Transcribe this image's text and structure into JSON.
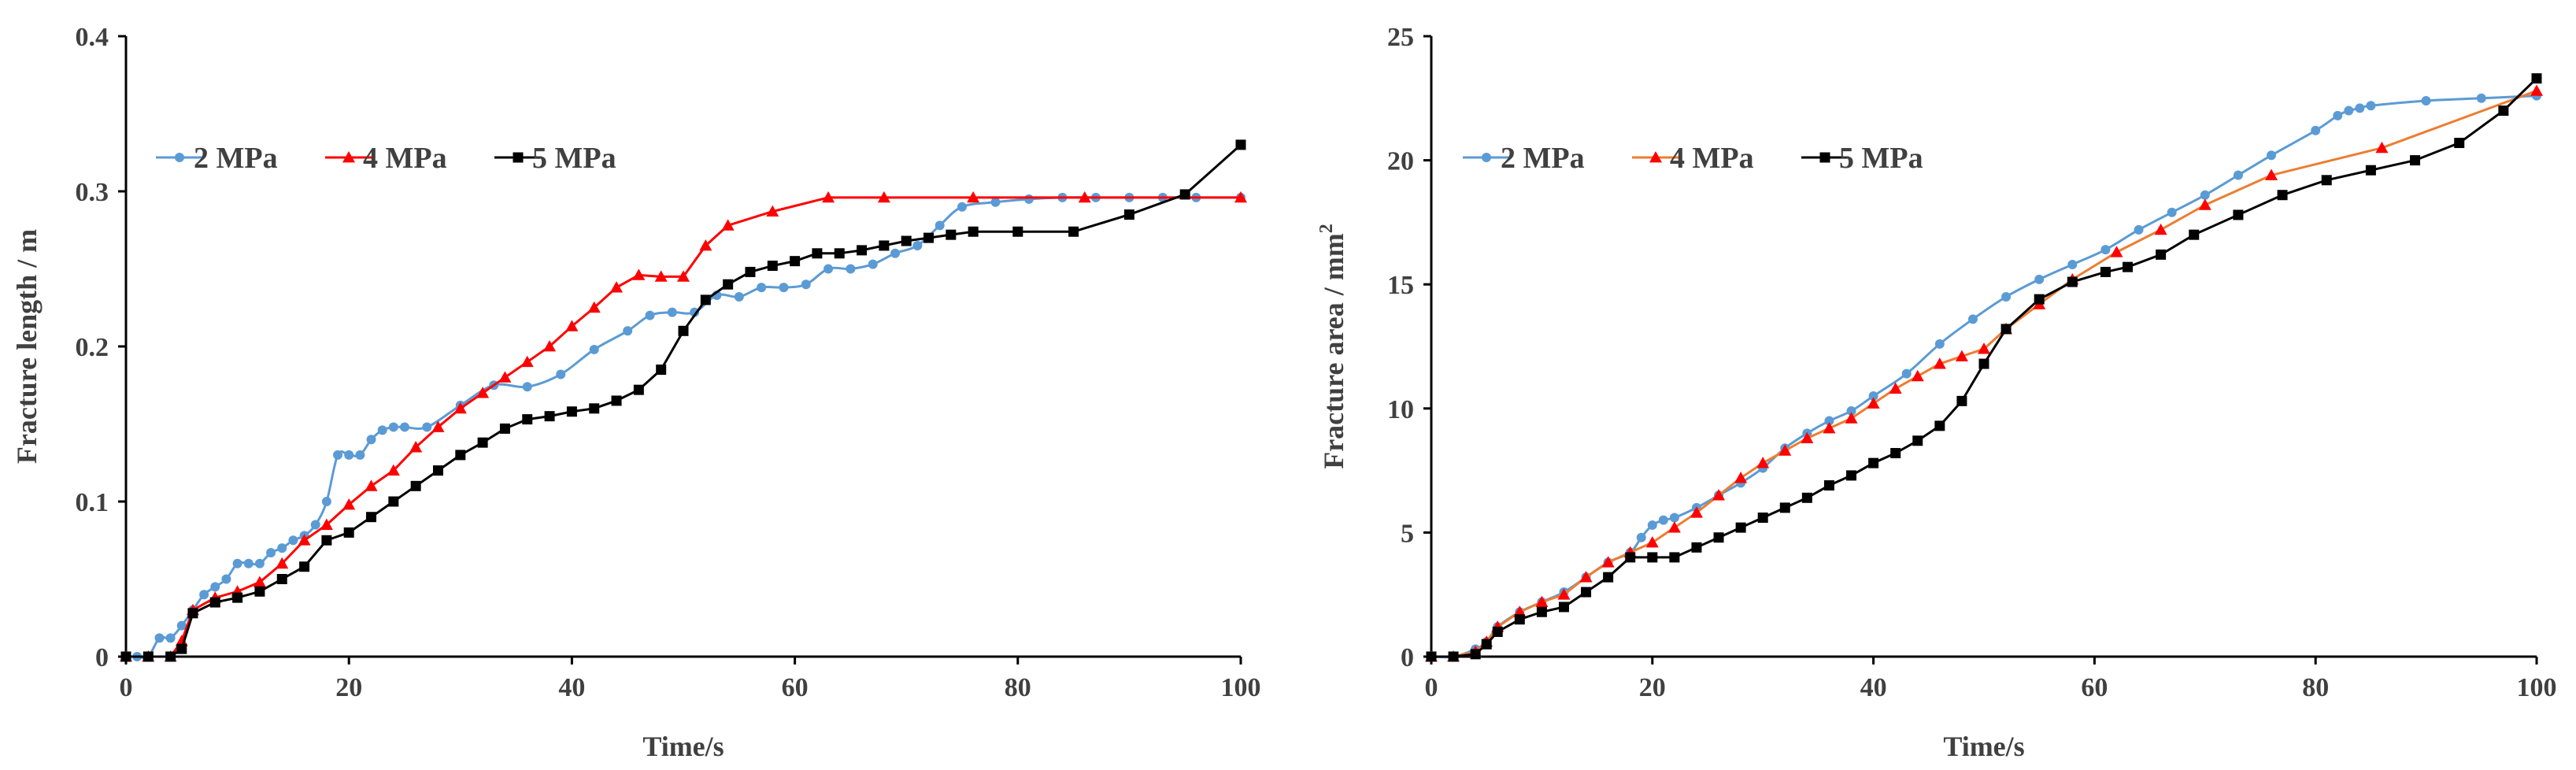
{
  "chart_data": [
    {
      "type": "line",
      "xlabel": "Time/s",
      "ylabel": "Fracture length / m",
      "xlim": [
        0,
        100
      ],
      "ylim": [
        0,
        0.4
      ],
      "xticks": [
        0,
        20,
        40,
        60,
        80,
        100
      ],
      "yticks": [
        0,
        0.1,
        0.2,
        0.3,
        0.4
      ],
      "xtick_labels": [
        "0",
        "20",
        "40",
        "60",
        "80",
        "100"
      ],
      "ytick_labels": [
        "0",
        "0.1",
        "0.2",
        "0.3",
        "0.4"
      ],
      "legend_position": "upper-left",
      "series": [
        {
          "name": "2 MPa",
          "color": "#5b9bd5",
          "marker": "circle",
          "smooth": true,
          "x": [
            0,
            1,
            2,
            3,
            4,
            5,
            6,
            7,
            8,
            9,
            10,
            11,
            12,
            13,
            14,
            15,
            16,
            17,
            18,
            19,
            20,
            21,
            22,
            23,
            24,
            25,
            27,
            30,
            33,
            36,
            39,
            42,
            45,
            47,
            49,
            51,
            53,
            55,
            57,
            59,
            61,
            63,
            65,
            67,
            69,
            71,
            73,
            75,
            78,
            81,
            84,
            87,
            90,
            93,
            96,
            100
          ],
          "y": [
            0,
            0,
            0,
            0.012,
            0.012,
            0.02,
            0.03,
            0.04,
            0.045,
            0.05,
            0.06,
            0.06,
            0.06,
            0.067,
            0.07,
            0.075,
            0.078,
            0.085,
            0.1,
            0.13,
            0.13,
            0.13,
            0.14,
            0.146,
            0.148,
            0.148,
            0.148,
            0.162,
            0.175,
            0.174,
            0.182,
            0.198,
            0.21,
            0.22,
            0.222,
            0.222,
            0.233,
            0.232,
            0.238,
            0.238,
            0.24,
            0.25,
            0.25,
            0.253,
            0.26,
            0.265,
            0.278,
            0.29,
            0.293,
            0.295,
            0.296,
            0.296,
            0.296,
            0.296,
            0.296,
            0.296
          ]
        },
        {
          "name": "4 MPa",
          "color": "#ff0000",
          "marker": "triangle",
          "smooth": false,
          "x": [
            0,
            2,
            4,
            5,
            6,
            8,
            10,
            12,
            14,
            16,
            18,
            20,
            22,
            24,
            26,
            28,
            30,
            32,
            34,
            36,
            38,
            40,
            42,
            44,
            46,
            48,
            50,
            52,
            54,
            58,
            63,
            68,
            76,
            86,
            100
          ],
          "y": [
            0,
            0,
            0,
            0.01,
            0.03,
            0.038,
            0.042,
            0.048,
            0.06,
            0.075,
            0.085,
            0.098,
            0.11,
            0.12,
            0.135,
            0.148,
            0.16,
            0.17,
            0.18,
            0.19,
            0.2,
            0.213,
            0.225,
            0.238,
            0.246,
            0.245,
            0.245,
            0.265,
            0.278,
            0.287,
            0.296,
            0.296,
            0.296,
            0.296,
            0.296
          ]
        },
        {
          "name": "5 MPa",
          "color": "#000000",
          "marker": "square",
          "smooth": false,
          "x": [
            0,
            2,
            4,
            5,
            6,
            8,
            10,
            12,
            14,
            16,
            18,
            20,
            22,
            24,
            26,
            28,
            30,
            32,
            34,
            36,
            38,
            40,
            42,
            44,
            46,
            48,
            50,
            52,
            54,
            56,
            58,
            60,
            62,
            64,
            66,
            68,
            70,
            72,
            74,
            76,
            80,
            85,
            90,
            95,
            100
          ],
          "y": [
            0,
            0,
            0,
            0.005,
            0.028,
            0.035,
            0.038,
            0.042,
            0.05,
            0.058,
            0.075,
            0.08,
            0.09,
            0.1,
            0.11,
            0.12,
            0.13,
            0.138,
            0.147,
            0.153,
            0.155,
            0.158,
            0.16,
            0.165,
            0.172,
            0.185,
            0.21,
            0.23,
            0.24,
            0.248,
            0.252,
            0.255,
            0.26,
            0.26,
            0.262,
            0.265,
            0.268,
            0.27,
            0.272,
            0.274,
            0.274,
            0.274,
            0.285,
            0.298,
            0.33
          ]
        }
      ]
    },
    {
      "type": "line",
      "xlabel": "Time/s",
      "ylabel": "Fracture area / mm",
      "ylabel_superscript": "2",
      "xlim": [
        0,
        100
      ],
      "ylim": [
        0,
        25
      ],
      "xticks": [
        0,
        20,
        40,
        60,
        80,
        100
      ],
      "yticks": [
        0,
        5,
        10,
        15,
        20,
        25
      ],
      "xtick_labels": [
        "0",
        "20",
        "40",
        "60",
        "80",
        "100"
      ],
      "ytick_labels": [
        "0",
        "5",
        "10",
        "15",
        "20",
        "25"
      ],
      "legend_position": "upper-left",
      "series": [
        {
          "name": "2 MPa",
          "color": "#5b9bd5",
          "marker": "circle",
          "smooth": true,
          "x": [
            0,
            2,
            4,
            5,
            6,
            8,
            10,
            12,
            14,
            16,
            18,
            19,
            20,
            21,
            22,
            24,
            26,
            28,
            30,
            32,
            34,
            36,
            38,
            40,
            43,
            46,
            49,
            52,
            55,
            58,
            61,
            64,
            67,
            70,
            73,
            76,
            80,
            82,
            83,
            84,
            85,
            90,
            95,
            100
          ],
          "y": [
            0,
            0,
            0.3,
            0.6,
            1.2,
            1.8,
            2.2,
            2.6,
            3.2,
            3.8,
            4.2,
            4.8,
            5.3,
            5.5,
            5.6,
            6.0,
            6.5,
            7.0,
            7.6,
            8.4,
            9.0,
            9.5,
            9.9,
            10.5,
            11.4,
            12.6,
            13.6,
            14.5,
            15.2,
            15.8,
            16.4,
            17.2,
            17.9,
            18.6,
            19.4,
            20.2,
            21.2,
            21.8,
            22.0,
            22.1,
            22.2,
            22.4,
            22.5,
            22.6
          ]
        },
        {
          "name": "4 MPa",
          "color": "#ff0000",
          "line_color": "#ed7d31",
          "marker": "triangle",
          "smooth": false,
          "x": [
            0,
            2,
            4,
            5,
            6,
            8,
            10,
            12,
            14,
            16,
            18,
            20,
            22,
            24,
            26,
            28,
            30,
            32,
            34,
            36,
            38,
            40,
            42,
            44,
            46,
            48,
            50,
            52,
            55,
            58,
            62,
            66,
            70,
            76,
            86,
            100
          ],
          "y": [
            0,
            0,
            0.2,
            0.6,
            1.2,
            1.8,
            2.2,
            2.5,
            3.2,
            3.8,
            4.2,
            4.6,
            5.2,
            5.8,
            6.5,
            7.2,
            7.8,
            8.3,
            8.8,
            9.2,
            9.6,
            10.2,
            10.8,
            11.3,
            11.8,
            12.1,
            12.4,
            13.2,
            14.2,
            15.2,
            16.3,
            17.2,
            18.2,
            19.4,
            20.5,
            22.8
          ]
        },
        {
          "name": "5 MPa",
          "color": "#000000",
          "marker": "square",
          "smooth": false,
          "x": [
            0,
            2,
            4,
            5,
            6,
            8,
            10,
            12,
            14,
            16,
            18,
            20,
            22,
            24,
            26,
            28,
            30,
            32,
            34,
            36,
            38,
            40,
            42,
            44,
            46,
            48,
            50,
            52,
            55,
            58,
            61,
            63,
            66,
            69,
            73,
            77,
            81,
            85,
            89,
            93,
            97,
            100
          ],
          "y": [
            0,
            0,
            0.1,
            0.5,
            1.0,
            1.5,
            1.8,
            2.0,
            2.6,
            3.2,
            4.0,
            4.0,
            4.0,
            4.4,
            4.8,
            5.2,
            5.6,
            6.0,
            6.4,
            6.9,
            7.3,
            7.8,
            8.2,
            8.7,
            9.3,
            10.3,
            11.8,
            13.2,
            14.4,
            15.1,
            15.5,
            15.7,
            16.2,
            17.0,
            17.8,
            18.6,
            19.2,
            19.6,
            20.0,
            20.7,
            22.0,
            23.3
          ]
        }
      ]
    }
  ]
}
